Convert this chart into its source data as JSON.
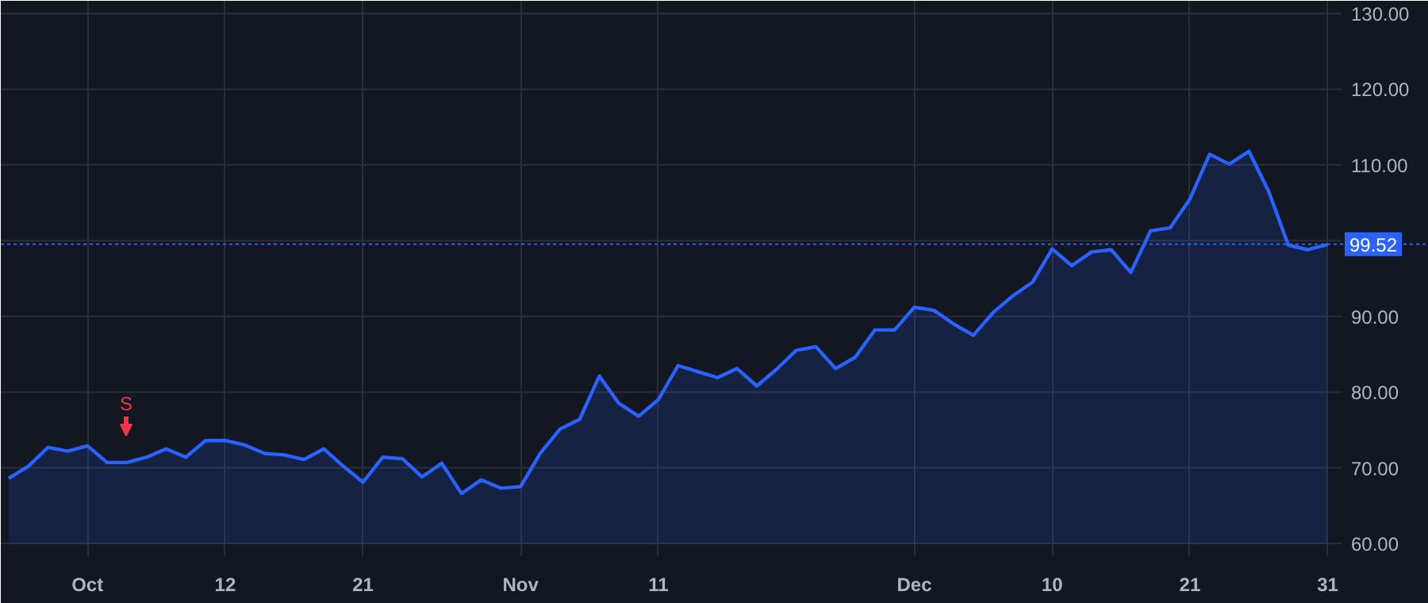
{
  "chart_data": {
    "type": "area",
    "categories": [
      null,
      null,
      null,
      null,
      "Oct",
      null,
      null,
      null,
      null,
      null,
      null,
      "12",
      null,
      null,
      null,
      null,
      null,
      null,
      "21",
      null,
      null,
      null,
      null,
      null,
      null,
      null,
      "Nov",
      null,
      null,
      null,
      null,
      null,
      null,
      "11",
      null,
      null,
      null,
      null,
      null,
      null,
      null,
      null,
      null,
      null,
      null,
      null,
      "Dec",
      null,
      null,
      null,
      null,
      null,
      null,
      "10",
      null,
      null,
      null,
      null,
      null,
      null,
      "21",
      null,
      null,
      null,
      null,
      null,
      null,
      "31"
    ],
    "series": [
      {
        "color": "#2962ff",
        "values": [
          68.6,
          70.2,
          72.7,
          72.2,
          72.9,
          70.7,
          70.7,
          71.4,
          72.5,
          71.4,
          73.6,
          73.6,
          73.0,
          71.9,
          71.7,
          71.1,
          72.5,
          70.2,
          68.1,
          71.4,
          71.2,
          68.8,
          70.6,
          66.6,
          68.4,
          67.3,
          67.5,
          71.9,
          75.1,
          76.4,
          82.1,
          78.5,
          76.8,
          79.0,
          83.5,
          82.7,
          81.9,
          83.1,
          80.8,
          83.0,
          85.5,
          86.0,
          83.1,
          84.6,
          88.2,
          88.2,
          91.2,
          90.8,
          89.0,
          87.5,
          90.5,
          92.7,
          94.5,
          98.9,
          96.7,
          98.5,
          98.8,
          95.8,
          101.3,
          101.7,
          105.5,
          111.4,
          110.1,
          111.8,
          106.5,
          99.4,
          98.8,
          99.5
        ]
      }
    ],
    "ylim": [
      60,
      130
    ],
    "yticks": [
      {
        "value": 60,
        "label": "60.00"
      },
      {
        "value": 70,
        "label": "70.00"
      },
      {
        "value": 80,
        "label": "80.00"
      },
      {
        "value": 90,
        "label": "90.00"
      },
      {
        "value": 100,
        "label": null
      },
      {
        "value": 110,
        "label": "110.00"
      },
      {
        "value": 120,
        "label": "120.00"
      },
      {
        "value": 130,
        "label": "130.00"
      }
    ],
    "ref_lines": [
      {
        "axis": "y",
        "value": 99.52,
        "label": "99.52",
        "color": "#2962ff",
        "line_style": "dotted"
      }
    ],
    "annotations": [
      "S"
    ],
    "grid": true
  }
}
